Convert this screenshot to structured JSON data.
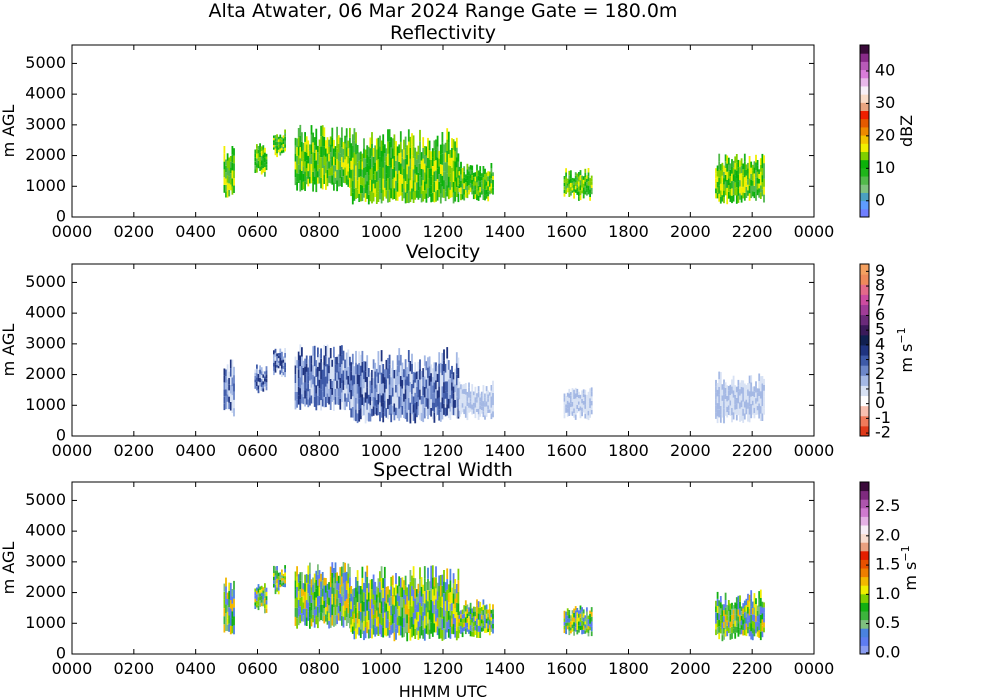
{
  "title": "Alta Atwater, 06 Mar 2024 Range Gate = 180.0m",
  "xlabel": "HHMM UTC",
  "chart_data": [
    {
      "type": "heatmap",
      "title": "Reflectivity",
      "ylabel": "m AGL",
      "xticks": [
        "0000",
        "0200",
        "0400",
        "0600",
        "0800",
        "1000",
        "1200",
        "1400",
        "1600",
        "1800",
        "2000",
        "2200",
        "0000"
      ],
      "yticks": [
        "0",
        "1000",
        "2000",
        "3000",
        "4000",
        "5000"
      ],
      "ylim": [
        0,
        5600
      ],
      "colorbar": {
        "label": "dBZ",
        "ticks": [
          "0",
          "10",
          "20",
          "30",
          "40"
        ],
        "range": [
          -5,
          48
        ],
        "colors": [
          "#6f7fff",
          "#5e9cff",
          "#4aa0c0",
          "#7fc27f",
          "#52b94b",
          "#1fb51a",
          "#0bb10a",
          "#7fd000",
          "#f1ef00",
          "#f4c400",
          "#ef8a00",
          "#e45a00",
          "#ee1f00",
          "#e8a480",
          "#fadcc8",
          "#f8f0f7",
          "#e9b8e9",
          "#d97cd9",
          "#b95ab9",
          "#8a2b8a",
          "#3a0a3a"
        ]
      },
      "echoes": [
        {
          "t0": 0.49,
          "t1": 0.525,
          "z0": 700,
          "z1": 2500
        },
        {
          "t0": 0.59,
          "t1": 0.63,
          "z0": 1400,
          "z1": 2400
        },
        {
          "t0": 0.65,
          "t1": 0.69,
          "z0": 2000,
          "z1": 2900
        },
        {
          "t0": 0.72,
          "t1": 0.9,
          "z0": 900,
          "z1": 3000
        },
        {
          "t0": 0.9,
          "t1": 1.25,
          "z0": 500,
          "z1": 2900
        },
        {
          "t0": 1.25,
          "t1": 1.36,
          "z0": 600,
          "z1": 1800
        },
        {
          "t0": 1.59,
          "t1": 1.68,
          "z0": 600,
          "z1": 1600
        },
        {
          "t0": 2.08,
          "t1": 2.24,
          "z0": 500,
          "z1": 2100
        }
      ]
    },
    {
      "type": "heatmap",
      "title": "Velocity",
      "ylabel": "m AGL",
      "xticks": [
        "0000",
        "0200",
        "0400",
        "0600",
        "0800",
        "1000",
        "1200",
        "1400",
        "1600",
        "1800",
        "2000",
        "2200",
        "0000"
      ],
      "yticks": [
        "0",
        "1000",
        "2000",
        "3000",
        "4000",
        "5000"
      ],
      "ylim": [
        0,
        5600
      ],
      "colorbar": {
        "label": "m s",
        "label_sup": "−1",
        "ticks": [
          "-2",
          "-1",
          "0",
          "1",
          "2",
          "3",
          "4",
          "5",
          "6",
          "7",
          "8",
          "9"
        ],
        "range": [
          -2.2,
          9.5
        ],
        "colors": [
          "#e03a1a",
          "#f07a5a",
          "#f8c0b0",
          "#ffffff",
          "#d8e2f4",
          "#a4b8e4",
          "#6d87c9",
          "#3e5aa8",
          "#1f3480",
          "#102050",
          "#3a1a5a",
          "#6a2a7a",
          "#a03c98",
          "#cc4ca0",
          "#e46a8a",
          "#ef8a5a",
          "#f4a060"
        ]
      },
      "echoes": [
        {
          "t0": 0.49,
          "t1": 0.525,
          "z0": 700,
          "z1": 2500
        },
        {
          "t0": 0.59,
          "t1": 0.63,
          "z0": 1400,
          "z1": 2400
        },
        {
          "t0": 0.65,
          "t1": 0.69,
          "z0": 2000,
          "z1": 2900
        },
        {
          "t0": 0.72,
          "t1": 0.9,
          "z0": 900,
          "z1": 3000
        },
        {
          "t0": 0.9,
          "t1": 1.25,
          "z0": 500,
          "z1": 2900
        },
        {
          "t0": 1.25,
          "t1": 1.36,
          "z0": 600,
          "z1": 1800
        },
        {
          "t0": 1.59,
          "t1": 1.68,
          "z0": 600,
          "z1": 1600
        },
        {
          "t0": 2.08,
          "t1": 2.24,
          "z0": 500,
          "z1": 2100
        }
      ]
    },
    {
      "type": "heatmap",
      "title": "Spectral Width",
      "ylabel": "m AGL",
      "xticks": [
        "0000",
        "0200",
        "0400",
        "0600",
        "0800",
        "1000",
        "1200",
        "1400",
        "1600",
        "1800",
        "2000",
        "2200",
        "0000"
      ],
      "yticks": [
        "0",
        "1000",
        "2000",
        "3000",
        "4000",
        "5000"
      ],
      "ylim": [
        0,
        5600
      ],
      "colorbar": {
        "label": "m s",
        "label_sup": "−1",
        "ticks": [
          "0.0",
          "0.5",
          "1.0",
          "1.5",
          "2.0",
          "2.5"
        ],
        "range": [
          -0.02,
          2.92
        ],
        "colors": [
          "#8a9cf0",
          "#5e7cf0",
          "#4a82e0",
          "#7fbf7f",
          "#3cb43c",
          "#12b012",
          "#7fd000",
          "#f0ef00",
          "#f2b800",
          "#ee7e00",
          "#e85000",
          "#e41e00",
          "#eaa080",
          "#f8dcd0",
          "#f7eef6",
          "#e4b0e4",
          "#cf7acf",
          "#ad55ad",
          "#7f2a7f",
          "#3a0a3a"
        ]
      },
      "echoes": [
        {
          "t0": 0.49,
          "t1": 0.525,
          "z0": 700,
          "z1": 2500
        },
        {
          "t0": 0.59,
          "t1": 0.63,
          "z0": 1400,
          "z1": 2400
        },
        {
          "t0": 0.65,
          "t1": 0.69,
          "z0": 2000,
          "z1": 2900
        },
        {
          "t0": 0.72,
          "t1": 0.9,
          "z0": 900,
          "z1": 3000
        },
        {
          "t0": 0.9,
          "t1": 1.25,
          "z0": 500,
          "z1": 2900
        },
        {
          "t0": 1.25,
          "t1": 1.36,
          "z0": 600,
          "z1": 1800
        },
        {
          "t0": 1.59,
          "t1": 1.68,
          "z0": 600,
          "z1": 1600
        },
        {
          "t0": 2.08,
          "t1": 2.24,
          "z0": 500,
          "z1": 2100
        }
      ]
    }
  ]
}
